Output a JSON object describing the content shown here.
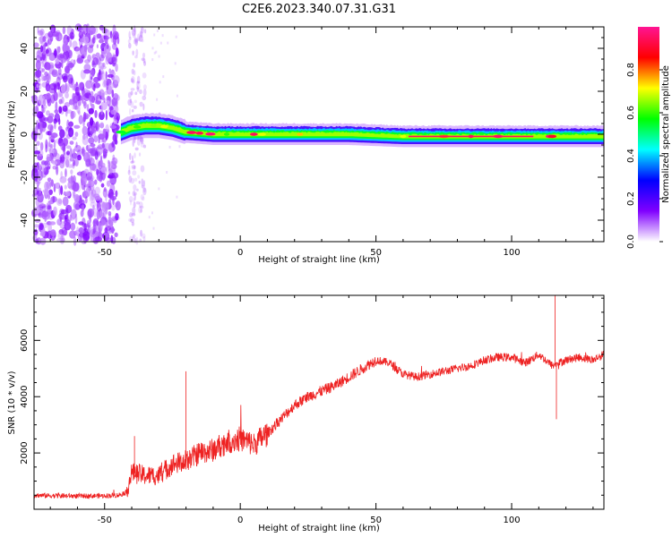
{
  "title": "C2E6.2023.340.07.31.G31",
  "chart_data": [
    {
      "type": "heatmap",
      "xlabel": "Height of straight line (km)",
      "ylabel": "Frequency (Hz)",
      "xlim": [
        -76,
        134
      ],
      "ylim": [
        -50,
        50
      ],
      "x_ticks": [
        -50,
        0,
        50,
        100
      ],
      "y_ticks": [
        -40,
        -20,
        0,
        20,
        40
      ],
      "colorbar": {
        "label": "Normalized spectral amplitude",
        "range": [
          0,
          1
        ],
        "ticks": [
          "0.0",
          "0.2",
          "0.4",
          "0.6",
          "0.8"
        ],
        "colormap": [
          "#ffffff",
          "#8000ff",
          "#0000ff",
          "#00ffff",
          "#00ff00",
          "#ffff00",
          "#ff0000",
          "#ff1493"
        ]
      },
      "ridge": {
        "x": [
          -44,
          -40,
          -35,
          -30,
          -25,
          -20,
          -10,
          0,
          10,
          20,
          40,
          60,
          80,
          100,
          115,
          134
        ],
        "frequency": [
          1,
          3,
          4,
          4,
          3,
          1,
          0,
          0,
          0,
          0,
          0,
          -1,
          -1,
          -1,
          -1,
          -1
        ]
      }
    },
    {
      "type": "line",
      "xlabel": "Height of straight line (km)",
      "ylabel": "SNR (10 * v/v)",
      "xlim": [
        -76,
        134
      ],
      "ylim": [
        0,
        7600
      ],
      "x_ticks": [
        -50,
        0,
        50,
        100
      ],
      "y_ticks": [
        2000,
        4000,
        6000
      ],
      "color": "#ee2222",
      "series": [
        {
          "x": [
            -76,
            -70,
            -60,
            -50,
            -45,
            -42,
            -40,
            -35,
            -30,
            -25,
            -20,
            -15,
            -10,
            -5,
            0,
            5,
            10,
            15,
            20,
            25,
            30,
            35,
            40,
            45,
            50,
            55,
            60,
            65,
            70,
            75,
            80,
            85,
            90,
            95,
            100,
            105,
            110,
            115,
            120,
            125,
            130,
            134
          ],
          "y": [
            500,
            480,
            470,
            480,
            500,
            600,
            1300,
            1200,
            1200,
            1600,
            1700,
            2000,
            2100,
            2400,
            2500,
            2300,
            2700,
            3200,
            3700,
            4000,
            4200,
            4400,
            4700,
            5000,
            5300,
            5200,
            4800,
            4700,
            4800,
            4900,
            5000,
            5100,
            5300,
            5400,
            5400,
            5200,
            5500,
            5100,
            5300,
            5400,
            5300,
            5500
          ]
        }
      ],
      "spikes": [
        {
          "x": -39,
          "y": 2600
        },
        {
          "x": -20,
          "y": 4900
        },
        {
          "x": 116,
          "y": 7600
        },
        {
          "x": 116.5,
          "y": 3200
        }
      ]
    }
  ]
}
